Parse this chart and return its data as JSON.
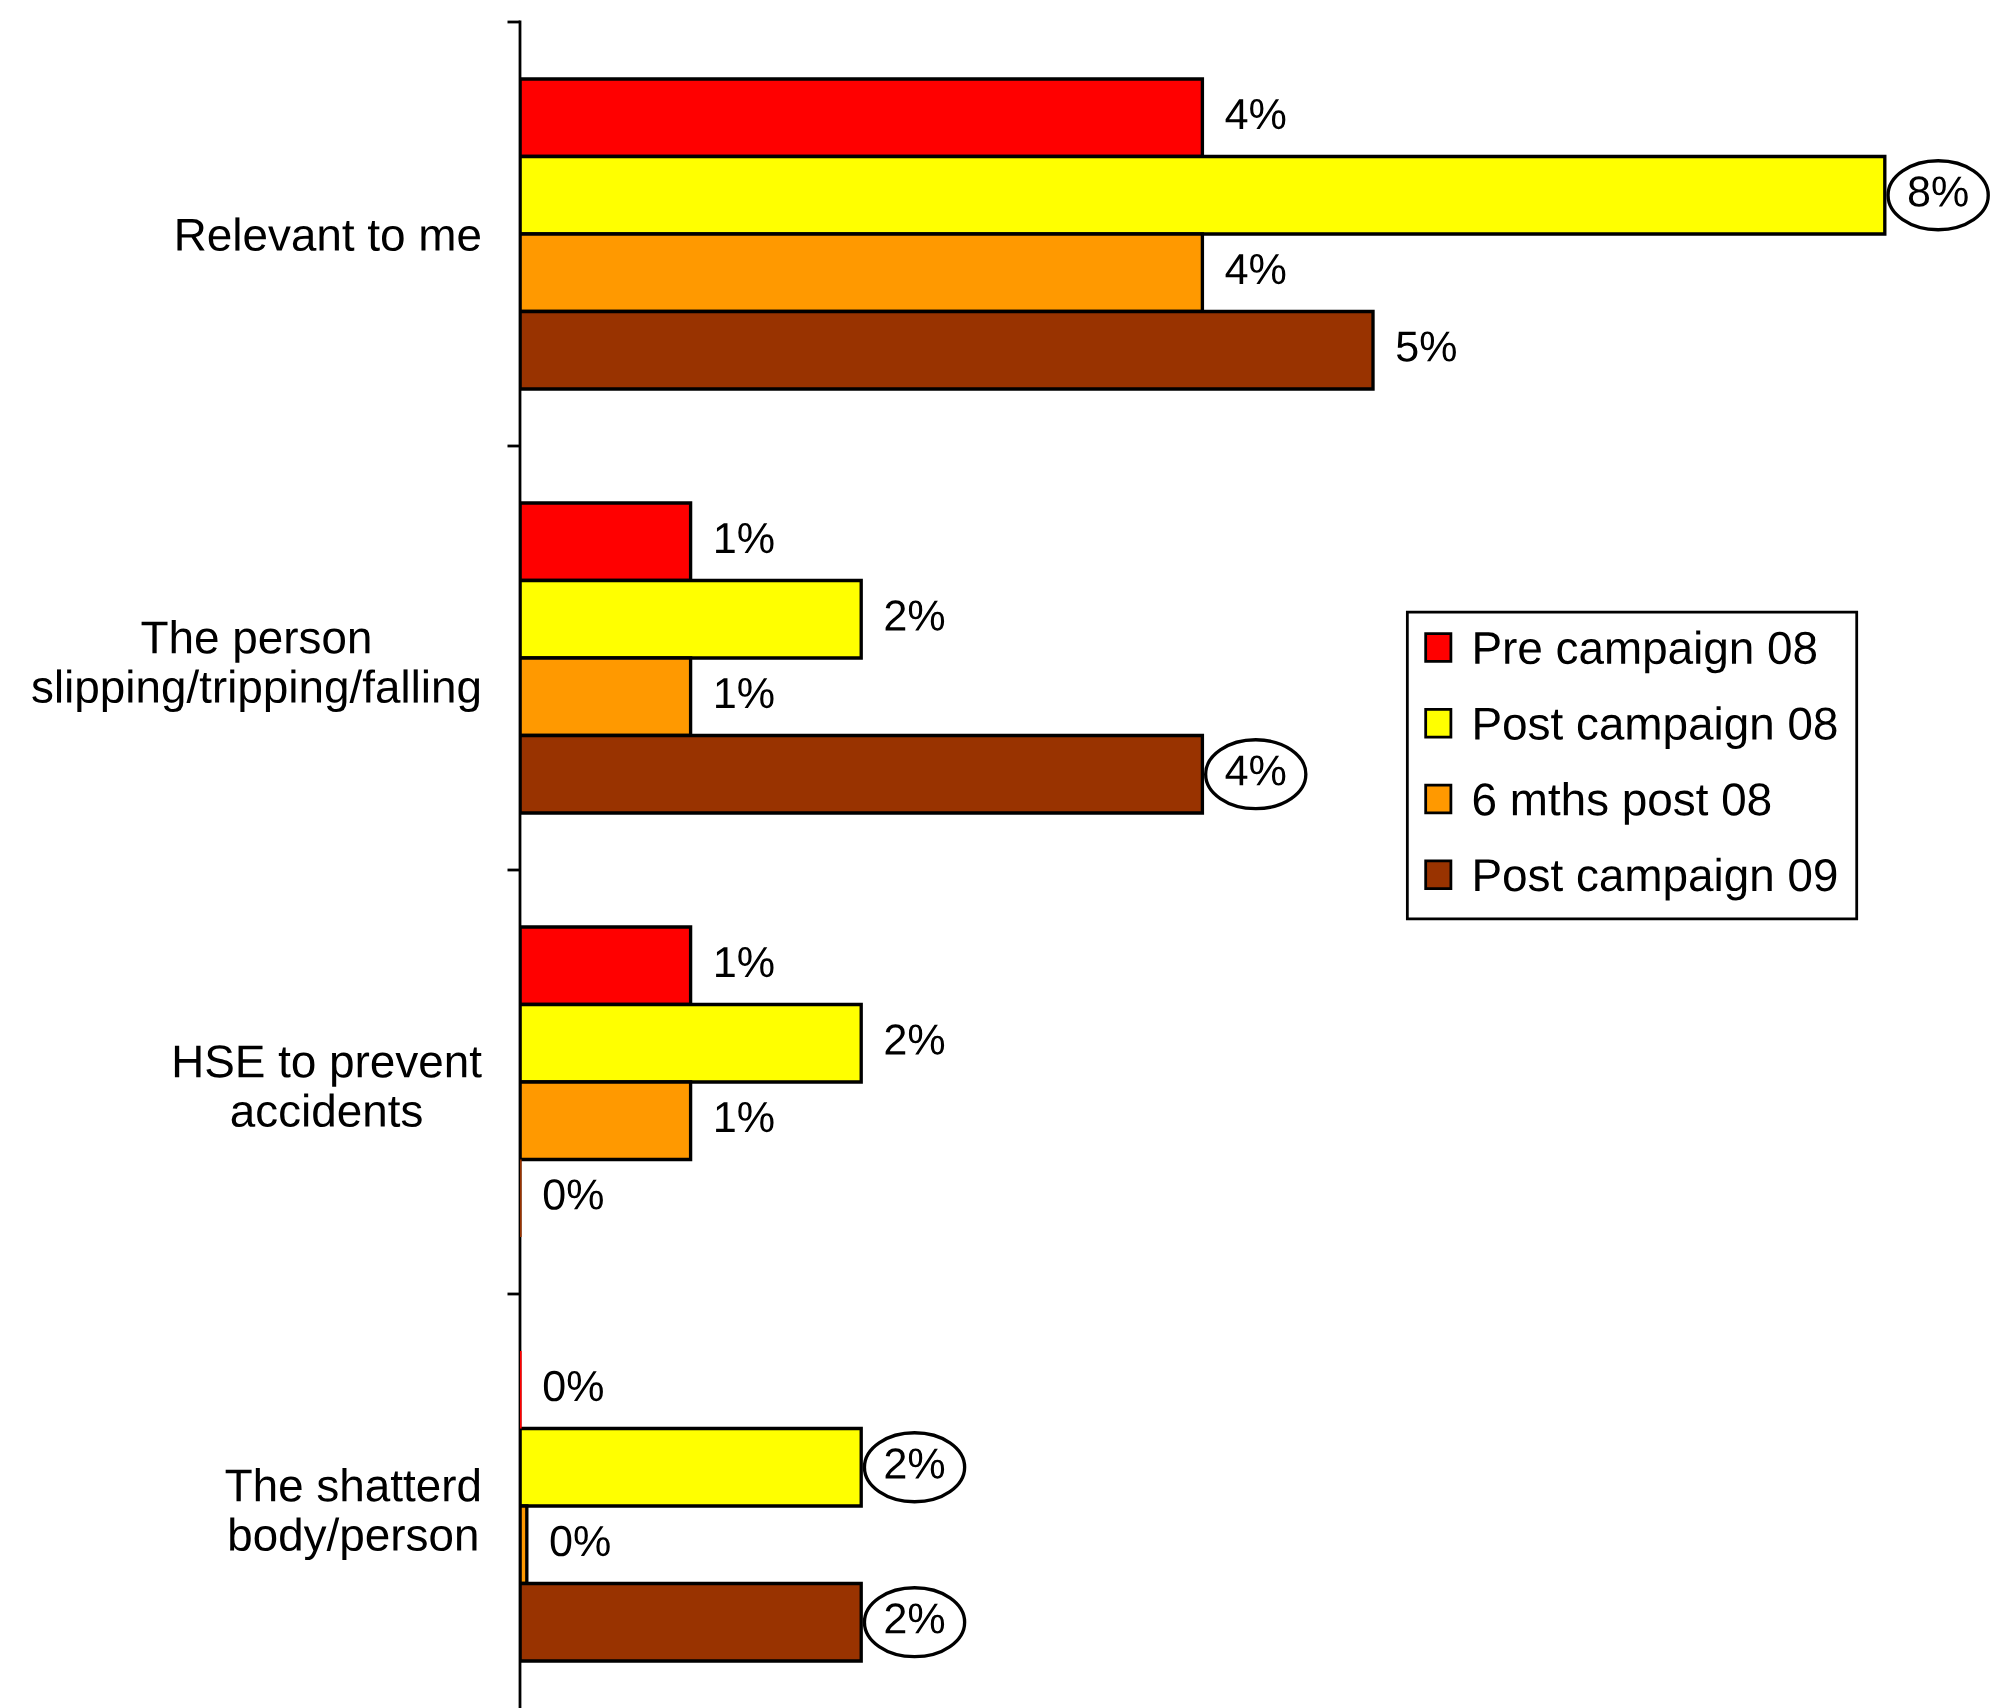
{
  "chart_data": {
    "type": "bar",
    "orientation": "horizontal",
    "categories": [
      "Relevant to me",
      "The person\nslipping/tripping/falling",
      "HSE to prevent\naccidents",
      "The shatterd\nbody/person"
    ],
    "series": [
      {
        "name": "Pre campaign 08",
        "color": "#ff0000",
        "values": [
          4,
          1,
          1,
          0
        ],
        "value_labels": [
          "4%",
          "1%",
          "1%",
          "0%"
        ]
      },
      {
        "name": "Post campaign 08",
        "color": "#ffff00",
        "values": [
          8,
          2,
          2,
          2
        ],
        "value_labels": [
          null,
          "2%",
          "2%",
          null
        ]
      },
      {
        "name": "6 mths post 08",
        "color": "#ff9900",
        "values": [
          4,
          1,
          1,
          0.04
        ],
        "value_labels": [
          "4%",
          "1%",
          "1%",
          "0%"
        ]
      },
      {
        "name": "Post campaign 09",
        "color": "#993300",
        "values": [
          5,
          4,
          0,
          2
        ],
        "value_labels": [
          "5%",
          null,
          "0%",
          null
        ]
      }
    ],
    "annotations": [
      {
        "text": "8%",
        "x": 8,
        "y": "Relevant to me"
      },
      {
        "text": "4%",
        "x": 4
      },
      {
        "text": "2%",
        "x": 2,
        "y": "The shatterd\nbody/person"
      },
      {
        "text": "2%",
        "x": 2,
        "y": "The shatterd\nbody/person"
      }
    ],
    "legend": "right"
  }
}
